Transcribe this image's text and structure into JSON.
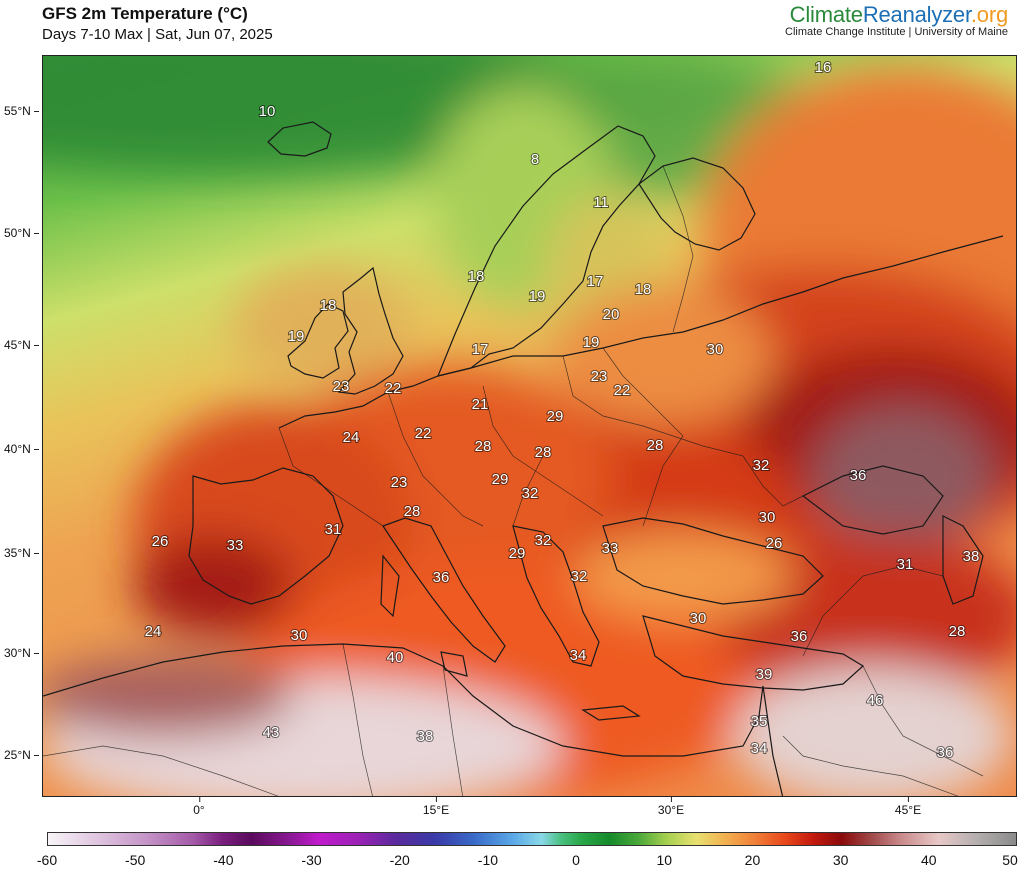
{
  "header": {
    "title": "GFS 2m Temperature (°C)",
    "subtitle": "Days 7-10 Max | Sat, Jun 07, 2025"
  },
  "brand": {
    "name_part1": "Climate",
    "name_part2": "Reanalyzer",
    "name_part3": ".org",
    "subtitle": "Climate Change Institute | University of Maine",
    "colors": {
      "part1": "#2a8a3a",
      "part2": "#1c6fb5",
      "part3": "#f29a24"
    }
  },
  "map": {
    "latitude_labels": [
      "55°N",
      "50°N",
      "45°N",
      "40°N",
      "35°N",
      "30°N",
      "25°N"
    ],
    "longitude_labels": [
      "0°",
      "15°E",
      "30°E",
      "45°E"
    ],
    "temperature_labels": [
      "16",
      "10",
      "8",
      "11",
      "18",
      "18",
      "19",
      "17",
      "18",
      "19",
      "20",
      "17",
      "19",
      "30",
      "23",
      "22",
      "23",
      "22",
      "21",
      "29",
      "24",
      "22",
      "28",
      "28",
      "28",
      "32",
      "36",
      "23",
      "29",
      "32",
      "28",
      "31",
      "30",
      "26",
      "26",
      "33",
      "32",
      "29",
      "33",
      "32",
      "38",
      "36",
      "31",
      "24",
      "30",
      "30",
      "36",
      "28",
      "40",
      "34",
      "39",
      "46",
      "43",
      "38",
      "35",
      "34",
      "36"
    ]
  },
  "colorbar": {
    "ticks": [
      "-60",
      "-50",
      "-40",
      "-30",
      "-20",
      "-10",
      "0",
      "10",
      "20",
      "30",
      "40",
      "50"
    ],
    "range": [
      -60,
      50
    ]
  }
}
